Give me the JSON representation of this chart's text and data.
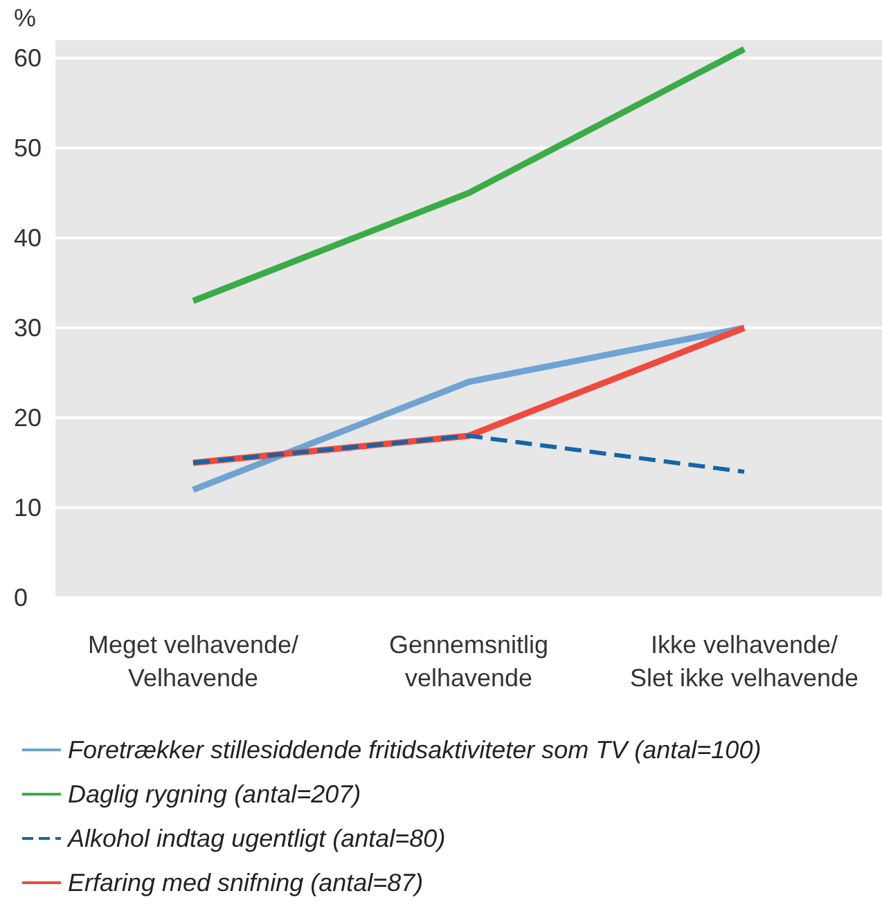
{
  "chart_data": {
    "type": "line",
    "ylabel": "%",
    "categories": [
      "Meget velhavende/\nVelhavende",
      "Gennemsnitlig\nvelhavende",
      "Ikke velhavende/\nSlet ikke velhavende"
    ],
    "series": [
      {
        "name": "Foretrækker stillesiddende fritidsaktiviteter som TV (antal=100)",
        "color": "#6fa3d2",
        "values": [
          12,
          24,
          30
        ]
      },
      {
        "name": "Daglig rygning (antal=207)",
        "color": "#3bab48",
        "values": [
          33,
          45,
          61
        ]
      },
      {
        "name": "Alkohol indtag ugentligt (antal=80)",
        "color": "#1565a6",
        "values": [
          15,
          18,
          14
        ],
        "line_style": "dashed"
      },
      {
        "name": "Erfaring med snifning (antal=87)",
        "color": "#ee4b3e",
        "values": [
          15,
          18,
          30
        ]
      }
    ],
    "ylim": [
      0,
      62
    ],
    "yticks": [
      0,
      10,
      20,
      30,
      40,
      50,
      60
    ],
    "grid": "y",
    "legend": "bottom",
    "marker": "none",
    "line_style": "solid"
  }
}
